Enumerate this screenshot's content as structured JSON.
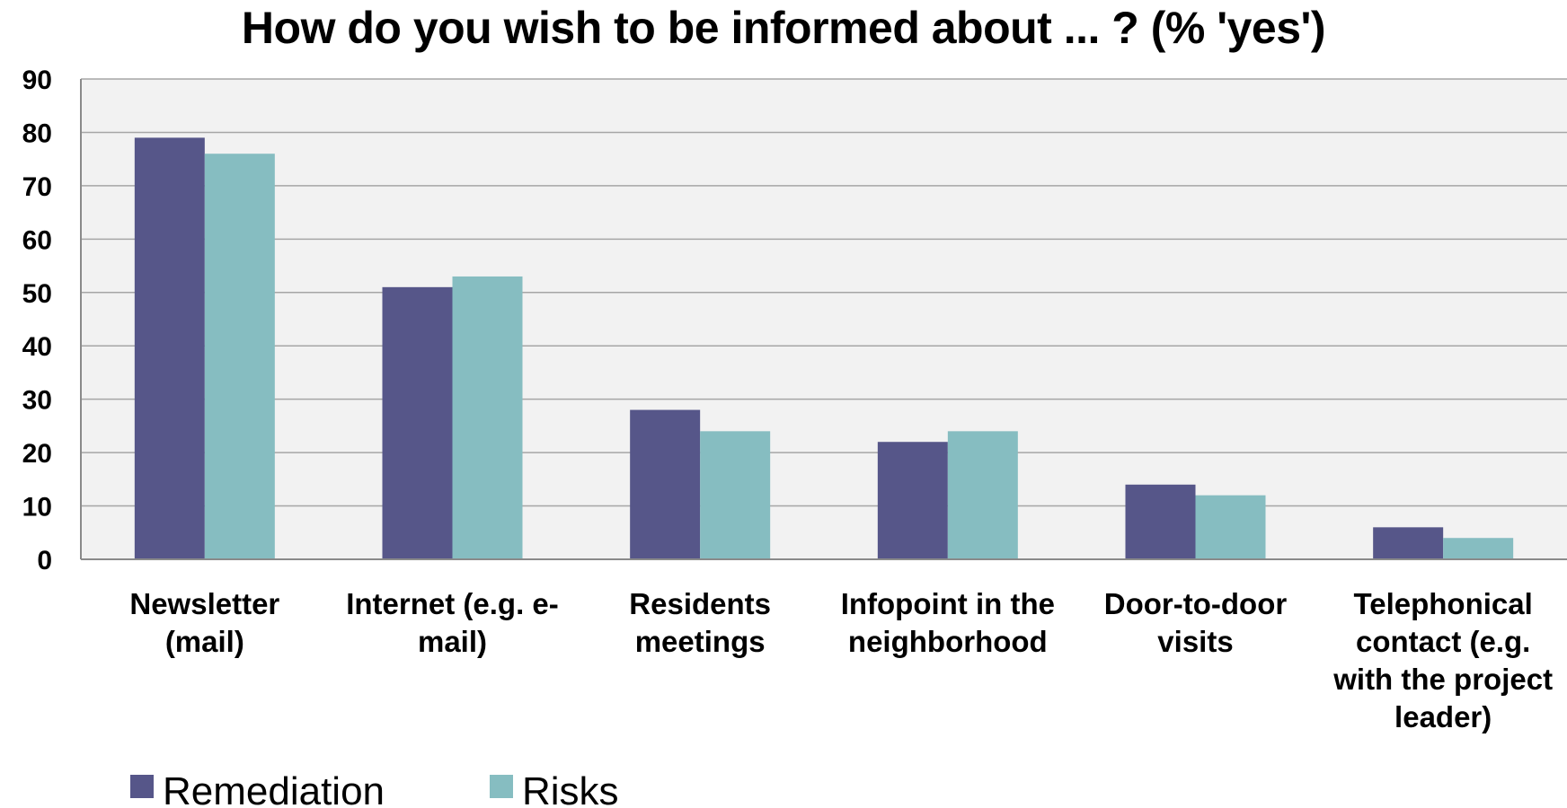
{
  "chart_data": {
    "type": "bar",
    "title": "How do you wish to be informed about ... ? (% 'yes')",
    "categories": [
      [
        "Newsletter",
        "(mail)"
      ],
      [
        "Internet (e.g. e-",
        "mail)"
      ],
      [
        "Residents",
        "meetings"
      ],
      [
        "Infopoint in the",
        "neighborhood"
      ],
      [
        "Door-to-door",
        "visits"
      ],
      [
        "Telephonical",
        "contact (e.g.",
        "with the project",
        "leader)"
      ]
    ],
    "series": [
      {
        "name": "Remediation",
        "color": "#565689",
        "values": [
          79,
          51,
          28,
          22,
          14,
          6
        ]
      },
      {
        "name": "Risks",
        "color": "#86bdc1",
        "values": [
          76,
          53,
          24,
          24,
          12,
          4
        ]
      }
    ],
    "ylim": [
      0,
      90
    ],
    "yticks": [
      0,
      10,
      20,
      30,
      40,
      50,
      60,
      70,
      80,
      90
    ],
    "grid": true,
    "legend_position": "bottom-left",
    "xlabel": "",
    "ylabel": ""
  }
}
